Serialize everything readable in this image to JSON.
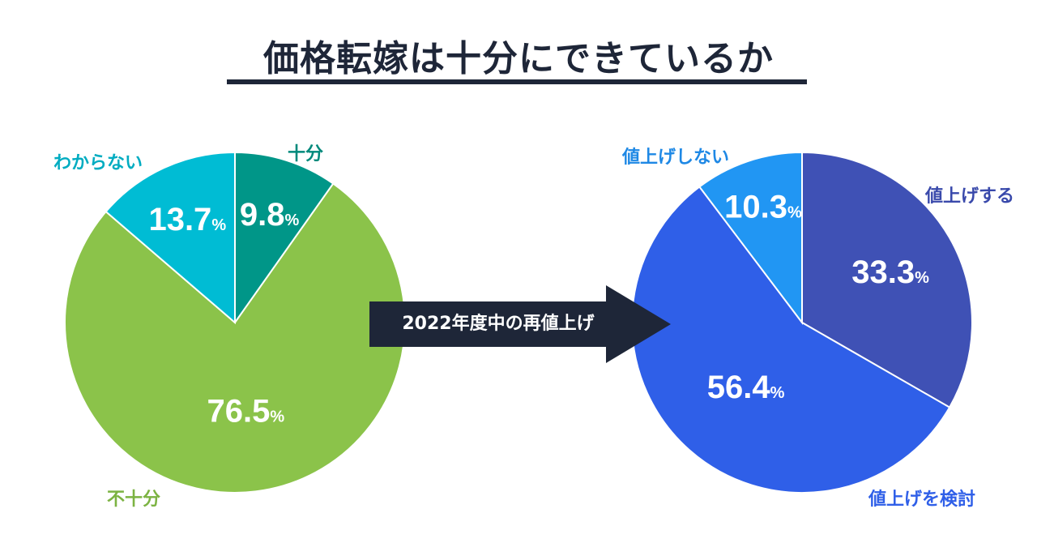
{
  "title": "価格転嫁は十分にできているか",
  "arrow_label": "2022年度中の再値上げ",
  "colors": {
    "title": "#1e2638",
    "arrow": "#1e2638"
  },
  "chart_data": [
    {
      "type": "pie",
      "title": "",
      "slices": [
        {
          "label": "十分",
          "value": 9.8,
          "value_label": "9.8",
          "unit": "%",
          "color": "#009688",
          "label_color": "#00897b"
        },
        {
          "label": "不十分",
          "value": 76.5,
          "value_label": "76.5",
          "unit": "%",
          "color": "#8bc34a",
          "label_color": "#7cb342"
        },
        {
          "label": "わからない",
          "value": 13.7,
          "value_label": "13.7",
          "unit": "%",
          "color": "#00bcd4",
          "label_color": "#00acc1"
        }
      ]
    },
    {
      "type": "pie",
      "title": "",
      "slices": [
        {
          "label": "値上げする",
          "value": 33.3,
          "value_label": "33.3",
          "unit": "%",
          "color": "#3f51b5",
          "label_color": "#3949ab"
        },
        {
          "label": "値上げを検討",
          "value": 56.4,
          "value_label": "56.4",
          "unit": "%",
          "color": "#2f5fe8",
          "label_color": "#2f5fe8"
        },
        {
          "label": "値上げしない",
          "value": 10.3,
          "value_label": "10.3",
          "unit": "%",
          "color": "#2196f3",
          "label_color": "#1e88e5"
        }
      ]
    }
  ]
}
